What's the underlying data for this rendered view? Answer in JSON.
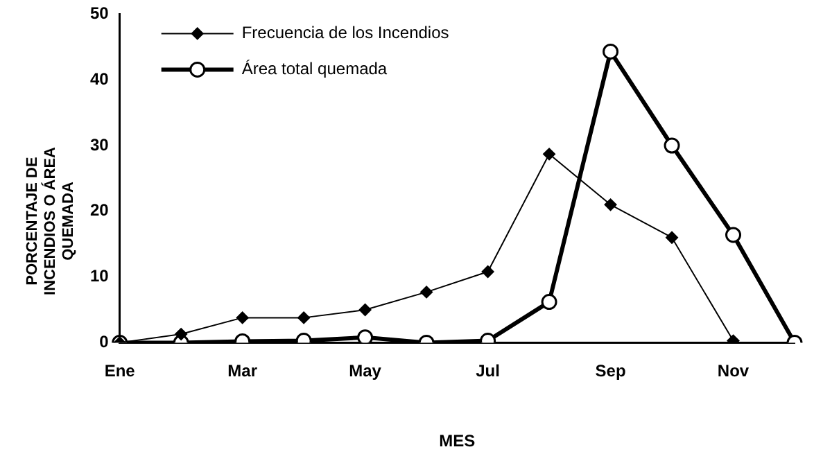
{
  "chart_data": {
    "type": "line",
    "xlabel": "MES",
    "ylabel": "PORCENTAJE DE INCENDIOS O ÁREA QUEMADA",
    "categories": [
      "Ene",
      null,
      "Mar",
      null,
      "May",
      null,
      "Jul",
      null,
      "Sep",
      null,
      "Nov",
      null
    ],
    "series": [
      {
        "name": "Frecuencia de los Incendios",
        "color": "#000000",
        "marker": "diamond",
        "values": [
          0,
          1.3,
          3.8,
          3.8,
          5,
          7.7,
          10.8,
          28.7,
          21,
          16,
          0.3,
          null
        ]
      },
      {
        "name": "Área total quemada",
        "color": "#000000",
        "marker": "circle",
        "values": [
          0,
          0,
          0.2,
          0.3,
          0.8,
          0,
          0.3,
          6.2,
          44.3,
          30,
          16.4,
          0
        ]
      }
    ],
    "ylim": [
      0,
      50
    ],
    "yticks": [
      0,
      10,
      20,
      30,
      40,
      50
    ],
    "grid": false,
    "legend": "top left"
  }
}
